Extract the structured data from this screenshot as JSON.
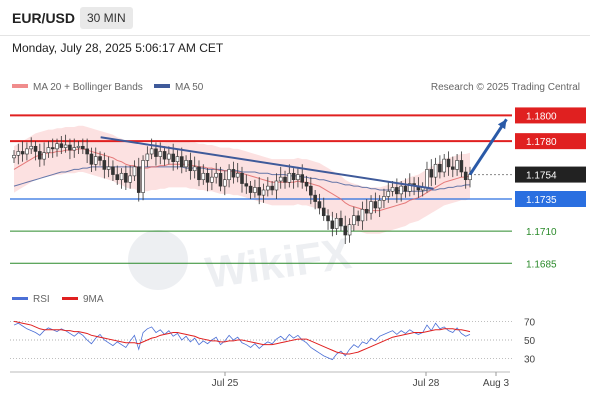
{
  "header": {
    "pair": "EUR/USD",
    "timeframe": "30 MIN",
    "datetime": "Monday, July 28, 2025 5:06:17 AM CET"
  },
  "legend": {
    "ma20": "MA 20 + Bollinger Bands",
    "ma50": "MA 50",
    "credit": "Research © 2025 Trading Central",
    "rsi": "RSI",
    "rsi_ma": "9MA"
  },
  "colors": {
    "resistance": "#e02020",
    "support": "#2a6fe0",
    "target": "#2a8a2a",
    "ma20": "#e06060",
    "ma50": "#3f5a9a",
    "trendline": "#3f5a9a",
    "arrow": "#2a5aa8",
    "bollinger_fill": "#fbdcdc",
    "current_price_bg": "#222222"
  },
  "chart_data": [
    {
      "type": "candlestick",
      "price_range": [
        1.1672,
        1.1812
      ],
      "x_ticks": [
        "Jul 25",
        "Jul 28",
        "Aug 3"
      ],
      "levels": [
        {
          "value": 1.18,
          "label": "1.1800",
          "role": "resistance"
        },
        {
          "value": 1.178,
          "label": "1.1780",
          "role": "resistance"
        },
        {
          "value": 1.1754,
          "label": "1.1754",
          "role": "current"
        },
        {
          "value": 1.1735,
          "label": "1.1735",
          "role": "support"
        },
        {
          "value": 1.171,
          "label": "1.1710",
          "role": "target"
        },
        {
          "value": 1.1685,
          "label": "1.1685",
          "role": "target"
        }
      ],
      "trendline": [
        [
          0.19,
          1.1783
        ],
        [
          0.92,
          1.1743
        ]
      ],
      "arrow": {
        "from": [
          1.0,
          1.1754
        ],
        "to": [
          1.08,
          1.1797
        ]
      },
      "close": [
        1.1769,
        1.1772,
        1.177,
        1.1774,
        1.1776,
        1.1772,
        1.1766,
        1.1771,
        1.1775,
        1.1774,
        1.1778,
        1.1775,
        1.1777,
        1.1773,
        1.1775,
        1.1776,
        1.1774,
        1.177,
        1.1762,
        1.1768,
        1.1765,
        1.1758,
        1.176,
        1.1754,
        1.175,
        1.1755,
        1.1748,
        1.1753,
        1.176,
        1.174,
        1.1765,
        1.177,
        1.1774,
        1.1768,
        1.1772,
        1.1766,
        1.177,
        1.1764,
        1.1768,
        1.176,
        1.1765,
        1.1757,
        1.176,
        1.175,
        1.1755,
        1.1748,
        1.1752,
        1.1755,
        1.1745,
        1.175,
        1.1758,
        1.1752,
        1.1755,
        1.1747,
        1.1745,
        1.174,
        1.1744,
        1.1738,
        1.1742,
        1.1745,
        1.1742,
        1.1749,
        1.1752,
        1.1748,
        1.1755,
        1.175,
        1.1754,
        1.1748,
        1.1745,
        1.1738,
        1.1733,
        1.1728,
        1.1722,
        1.1718,
        1.1712,
        1.172,
        1.1714,
        1.1707,
        1.1715,
        1.1722,
        1.1718,
        1.1727,
        1.1724,
        1.1733,
        1.1728,
        1.1734,
        1.1737,
        1.1741,
        1.1744,
        1.1739,
        1.1745,
        1.1741,
        1.1747,
        1.1745,
        1.1742,
        1.1744,
        1.1758,
        1.1752,
        1.1762,
        1.1756,
        1.1766,
        1.176,
        1.1758,
        1.1765,
        1.1756,
        1.175,
        1.1754
      ],
      "ma20": [
        1.1758,
        1.176,
        1.1762,
        1.1764,
        1.1766,
        1.1768,
        1.1769,
        1.177,
        1.1771,
        1.1771,
        1.1772,
        1.1772,
        1.1773,
        1.1773,
        1.1773,
        1.1774,
        1.1774,
        1.1773,
        1.1772,
        1.1771,
        1.177,
        1.1769,
        1.1768,
        1.1767,
        1.1765,
        1.1764,
        1.1762,
        1.1761,
        1.1761,
        1.1759,
        1.1759,
        1.1759,
        1.176,
        1.176,
        1.1761,
        1.1761,
        1.1762,
        1.1762,
        1.1762,
        1.1762,
        1.1762,
        1.1761,
        1.1761,
        1.176,
        1.176,
        1.1759,
        1.1759,
        1.1758,
        1.1757,
        1.1757,
        1.1757,
        1.1756,
        1.1756,
        1.1755,
        1.1754,
        1.1753,
        1.1752,
        1.1751,
        1.175,
        1.1749,
        1.1748,
        1.1748,
        1.1748,
        1.1748,
        1.1748,
        1.1748,
        1.1749,
        1.1748,
        1.1748,
        1.1747,
        1.1746,
        1.1745,
        1.1743,
        1.1741,
        1.1739,
        1.1737,
        1.1735,
        1.1732,
        1.173,
        1.1729,
        1.1728,
        1.1727,
        1.1726,
        1.1726,
        1.1726,
        1.1726,
        1.1727,
        1.1728,
        1.1729,
        1.173,
        1.1731,
        1.1732,
        1.1734,
        1.1735,
        1.1736,
        1.1738,
        1.174,
        1.1742,
        1.1744,
        1.1746,
        1.1748,
        1.1749,
        1.175,
        1.1751,
        1.1752,
        1.1752,
        1.1753
      ],
      "ma50": [
        1.1745,
        1.1746,
        1.1747,
        1.1748,
        1.1749,
        1.175,
        1.1751,
        1.1752,
        1.1753,
        1.1754,
        1.1755,
        1.1756,
        1.1756,
        1.1757,
        1.1758,
        1.1758,
        1.1759,
        1.1759,
        1.176,
        1.176,
        1.176,
        1.176,
        1.176,
        1.176,
        1.176,
        1.176,
        1.176,
        1.176,
        1.176,
        1.176,
        1.176,
        1.176,
        1.176,
        1.176,
        1.176,
        1.176,
        1.176,
        1.176,
        1.176,
        1.176,
        1.1759,
        1.1759,
        1.1759,
        1.1759,
        1.1759,
        1.1758,
        1.1758,
        1.1758,
        1.1758,
        1.1757,
        1.1757,
        1.1757,
        1.1757,
        1.1756,
        1.1756,
        1.1756,
        1.1756,
        1.1755,
        1.1755,
        1.1755,
        1.1754,
        1.1754,
        1.1754,
        1.1754,
        1.1753,
        1.1753,
        1.1753,
        1.1752,
        1.1752,
        1.1751,
        1.1751,
        1.175,
        1.175,
        1.1749,
        1.1748,
        1.1748,
        1.1747,
        1.1746,
        1.1746,
        1.1745,
        1.1745,
        1.1744,
        1.1744,
        1.1743,
        1.1743,
        1.1742,
        1.1742,
        1.1742,
        1.1742,
        1.1742,
        1.1741,
        1.1741,
        1.1741,
        1.1741,
        1.1741,
        1.1741,
        1.1742,
        1.1742,
        1.1742,
        1.1743,
        1.1743,
        1.1744,
        1.1744,
        1.1745,
        1.1745,
        1.1746,
        1.1746
      ],
      "band_width": 0.0018
    },
    {
      "type": "line",
      "indicator": "RSI",
      "ylim": [
        20,
        80
      ],
      "y_ticks": [
        70,
        50,
        30
      ],
      "series": [
        {
          "name": "RSI",
          "values": [
            66,
            68,
            65,
            62,
            60,
            58,
            55,
            60,
            63,
            61,
            59,
            62,
            60,
            57,
            54,
            58,
            55,
            50,
            46,
            52,
            56,
            50,
            47,
            44,
            48,
            45,
            42,
            49,
            55,
            40,
            58,
            62,
            64,
            58,
            61,
            56,
            60,
            54,
            57,
            50,
            54,
            48,
            52,
            45,
            49,
            46,
            50,
            53,
            45,
            49,
            55,
            50,
            53,
            47,
            45,
            42,
            46,
            41,
            45,
            48,
            46,
            51,
            54,
            50,
            56,
            52,
            55,
            50,
            47,
            42,
            39,
            36,
            33,
            31,
            29,
            35,
            38,
            33,
            40,
            45,
            42,
            48,
            46,
            52,
            49,
            54,
            56,
            58,
            60,
            56,
            60,
            57,
            61,
            58,
            56,
            58,
            66,
            60,
            68,
            62,
            64,
            60,
            58,
            63,
            57,
            54,
            56
          ]
        },
        {
          "name": "9MA",
          "values": [
            70,
            69,
            68,
            67,
            66,
            64,
            62,
            61,
            61,
            61,
            61,
            61,
            60,
            60,
            59,
            59,
            58,
            57,
            55,
            54,
            53,
            52,
            51,
            50,
            49,
            48,
            47,
            47,
            47,
            46,
            48,
            50,
            52,
            53,
            55,
            56,
            57,
            58,
            58,
            57,
            56,
            55,
            54,
            52,
            51,
            50,
            49,
            49,
            48,
            48,
            49,
            49,
            50,
            50,
            49,
            48,
            47,
            46,
            45,
            45,
            45,
            46,
            47,
            48,
            49,
            50,
            51,
            51,
            51,
            49,
            47,
            45,
            43,
            41,
            39,
            37,
            36,
            35,
            35,
            36,
            37,
            39,
            41,
            43,
            45,
            47,
            49,
            51,
            53,
            54,
            55,
            56,
            57,
            58,
            58,
            58,
            59,
            60,
            61,
            61,
            62,
            62,
            62,
            61,
            61,
            60,
            59
          ]
        }
      ]
    }
  ]
}
